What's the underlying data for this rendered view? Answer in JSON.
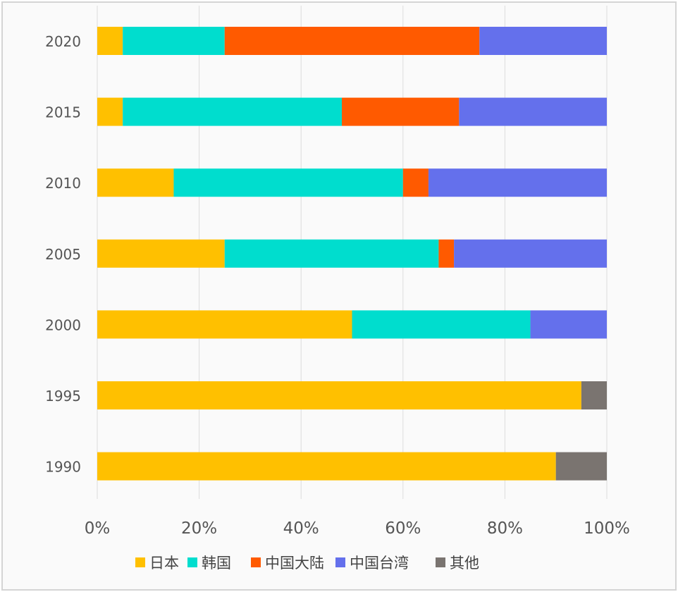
{
  "chart_data": {
    "type": "bar",
    "orientation": "horizontal",
    "stacked": "percent",
    "categories": [
      "2020",
      "2015",
      "2010",
      "2005",
      "2000",
      "1995",
      "1990"
    ],
    "series": [
      {
        "name": "日本",
        "color": "#FFC000",
        "values": [
          5,
          5,
          15,
          25,
          50,
          95,
          90
        ]
      },
      {
        "name": "韩国",
        "color": "#00DDCE",
        "values": [
          20,
          43,
          45,
          42,
          35,
          0,
          0
        ]
      },
      {
        "name": "中国大陆",
        "color": "#FF5A00",
        "values": [
          50,
          23,
          5,
          3,
          0,
          0,
          0
        ]
      },
      {
        "name": "中国台湾",
        "color": "#6470EC",
        "values": [
          25,
          29,
          35,
          30,
          15,
          0,
          0
        ]
      },
      {
        "name": "其他",
        "color": "#7A7470",
        "values": [
          0,
          0,
          0,
          0,
          0,
          5,
          10
        ]
      }
    ],
    "xlim": [
      0,
      100
    ],
    "xticks": [
      "0%",
      "20%",
      "40%",
      "60%",
      "80%",
      "100%"
    ],
    "grid": true,
    "legend_position": "bottom"
  }
}
